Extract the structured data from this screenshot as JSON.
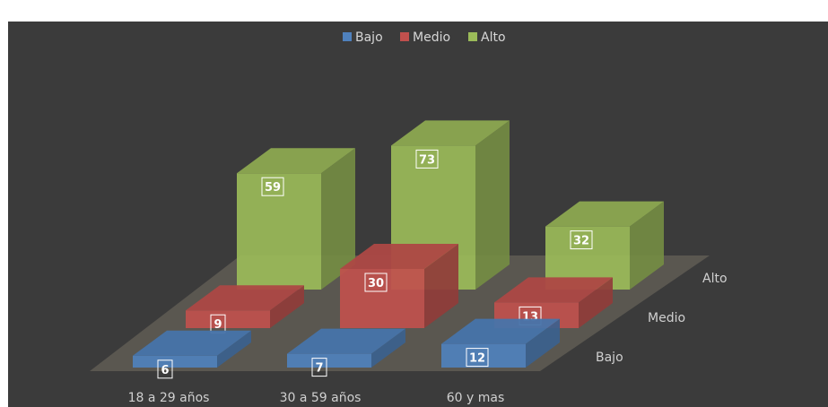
{
  "chart_data": {
    "type": "bar",
    "subtype": "3d-column",
    "categories": [
      "18 a 29 años",
      "30 a 59 años",
      "60 y mas"
    ],
    "depth_labels": [
      "Bajo",
      "Medio",
      "Alto"
    ],
    "series": [
      {
        "name": "Bajo",
        "values": [
          6,
          7,
          12
        ],
        "color": "#4f81bd"
      },
      {
        "name": "Medio",
        "values": [
          9,
          30,
          13
        ],
        "color": "#c0504d"
      },
      {
        "name": "Alto",
        "values": [
          59,
          73,
          32
        ],
        "color": "#9bbb59"
      }
    ],
    "title": "",
    "legend_position": "top",
    "background": "#3b3b3b",
    "floor_color": "#5a5750"
  }
}
